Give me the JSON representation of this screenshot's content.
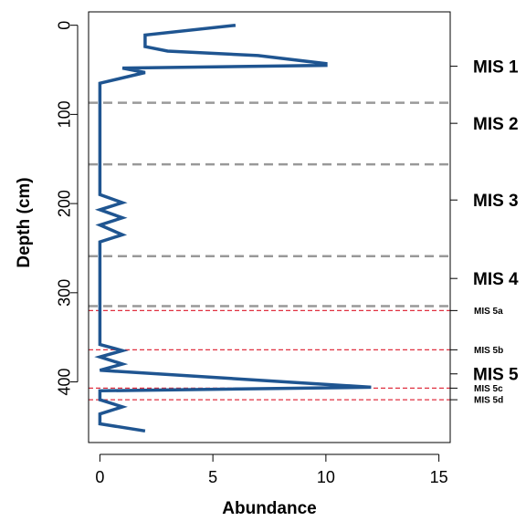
{
  "chart_data": {
    "type": "line",
    "title": "",
    "xlabel": "Abundance",
    "ylabel": "Depth (cm)",
    "xlim": [
      -0.5,
      15.5
    ],
    "ylim": [
      468,
      -15
    ],
    "y_inverted": true,
    "x_ticks": [
      0,
      5,
      10,
      15
    ],
    "y_ticks": [
      0,
      100,
      200,
      300,
      400
    ],
    "grid": false,
    "legend": "none",
    "series": [
      {
        "color": "#1f5591",
        "points": [
          [
            6,
            0
          ],
          [
            2,
            11
          ],
          [
            2,
            24
          ],
          [
            3,
            29
          ],
          [
            7,
            34
          ],
          [
            10,
            43
          ],
          [
            10,
            45
          ],
          [
            1,
            48
          ],
          [
            2,
            53
          ],
          [
            0,
            65
          ],
          [
            0,
            190
          ],
          [
            1,
            199
          ],
          [
            0,
            207
          ],
          [
            1,
            216
          ],
          [
            0,
            224
          ],
          [
            1,
            235
          ],
          [
            0,
            243
          ],
          [
            0,
            325
          ],
          [
            0,
            358
          ],
          [
            1,
            365
          ],
          [
            0,
            372
          ],
          [
            1,
            380
          ],
          [
            0,
            387
          ],
          [
            12,
            406
          ],
          [
            0,
            410
          ],
          [
            0,
            420
          ],
          [
            1,
            428
          ],
          [
            0,
            436
          ],
          [
            0,
            447
          ],
          [
            2,
            455
          ]
        ]
      }
    ],
    "boundaries": [
      {
        "depth": 87,
        "style": "thick-gray-dashed",
        "color": "#999999"
      },
      {
        "depth": 156,
        "style": "thick-gray-dashed",
        "color": "#999999"
      },
      {
        "depth": 259,
        "style": "thick-gray-dashed",
        "color": "#999999"
      },
      {
        "depth": 315,
        "style": "thick-gray-dashed",
        "color": "#999999"
      },
      {
        "depth": 320,
        "style": "thin-red-dashed",
        "color": "#e03040"
      },
      {
        "depth": 364,
        "style": "thin-red-dashed",
        "color": "#e03040"
      },
      {
        "depth": 407,
        "style": "thin-red-dashed",
        "color": "#e03040"
      },
      {
        "depth": 420,
        "style": "thin-red-dashed",
        "color": "#e03040"
      }
    ],
    "right_axis_labels": [
      {
        "label": "MIS 1",
        "depth": 46,
        "size": "large"
      },
      {
        "label": "MIS 2",
        "depth": 110,
        "size": "large"
      },
      {
        "label": "MIS 3",
        "depth": 196,
        "size": "large"
      },
      {
        "label": "MIS 4",
        "depth": 284,
        "size": "large"
      },
      {
        "label": "MIS 5a",
        "depth": 320,
        "size": "small"
      },
      {
        "label": "MIS 5b",
        "depth": 364,
        "size": "small"
      },
      {
        "label": "MIS 5",
        "depth": 391,
        "size": "large"
      },
      {
        "label": "MIS 5c",
        "depth": 407,
        "size": "small"
      },
      {
        "label": "MIS 5d",
        "depth": 420,
        "size": "small"
      }
    ]
  }
}
